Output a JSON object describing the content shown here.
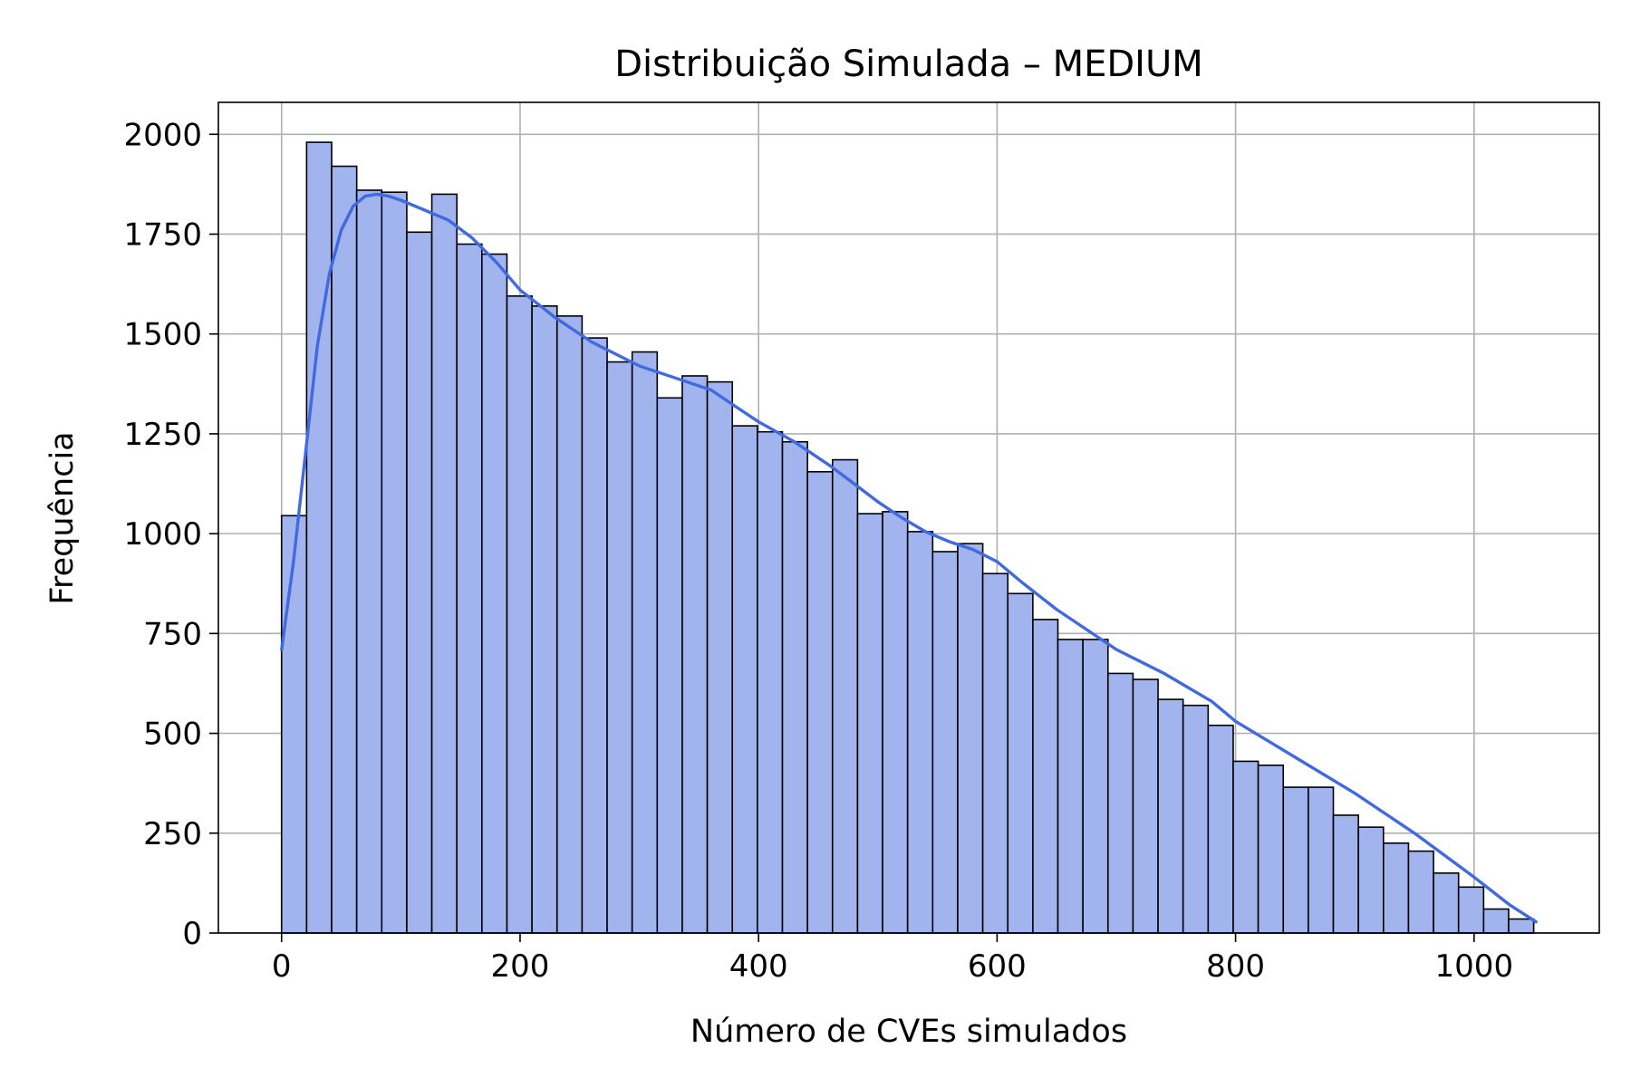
{
  "chart_data": {
    "type": "histogram",
    "title": "Distribuição Simulada – MEDIUM",
    "xlabel": "Número de CVEs simulados",
    "ylabel": "Frequência",
    "xlim": [
      -53,
      1105
    ],
    "ylim": [
      0,
      2080
    ],
    "grid": true,
    "bin_width": 21,
    "bin_start": 0,
    "x_ticks": [
      0,
      200,
      400,
      600,
      800,
      1000
    ],
    "x_tick_labels": [
      "0",
      "200",
      "400",
      "600",
      "800",
      "1000"
    ],
    "y_ticks": [
      0,
      250,
      500,
      750,
      1000,
      1250,
      1500,
      1750,
      2000
    ],
    "y_tick_labels": [
      "0",
      "250",
      "500",
      "750",
      "1000",
      "1250",
      "1500",
      "1750",
      "2000"
    ],
    "values": [
      1045,
      1980,
      1920,
      1860,
      1855,
      1755,
      1850,
      1725,
      1700,
      1595,
      1570,
      1545,
      1490,
      1430,
      1455,
      1340,
      1395,
      1380,
      1270,
      1255,
      1230,
      1155,
      1185,
      1050,
      1055,
      1005,
      955,
      975,
      900,
      850,
      785,
      735,
      735,
      650,
      635,
      585,
      570,
      520,
      430,
      420,
      365,
      365,
      295,
      265,
      225,
      205,
      150,
      115,
      60,
      35
    ],
    "kde": {
      "name": "density",
      "x": [
        0,
        10,
        20,
        30,
        40,
        50,
        60,
        70,
        80,
        90,
        100,
        120,
        140,
        160,
        180,
        200,
        230,
        260,
        300,
        330,
        360,
        380,
        400,
        430,
        460,
        480,
        500,
        520,
        540,
        560,
        580,
        600,
        620,
        650,
        680,
        700,
        740,
        780,
        800,
        850,
        900,
        950,
        1000,
        1030,
        1052
      ],
      "y": [
        710,
        930,
        1200,
        1470,
        1650,
        1760,
        1820,
        1845,
        1850,
        1845,
        1835,
        1810,
        1785,
        1740,
        1680,
        1610,
        1540,
        1480,
        1420,
        1390,
        1360,
        1320,
        1280,
        1230,
        1170,
        1125,
        1080,
        1040,
        1005,
        980,
        960,
        930,
        880,
        810,
        750,
        710,
        650,
        580,
        530,
        440,
        350,
        250,
        140,
        70,
        28
      ]
    },
    "colors": {
      "bar_fill": "#a1b4ee",
      "bar_edge": "#000000",
      "kde_line": "#4169e1",
      "grid": "#b0b0b0"
    }
  }
}
